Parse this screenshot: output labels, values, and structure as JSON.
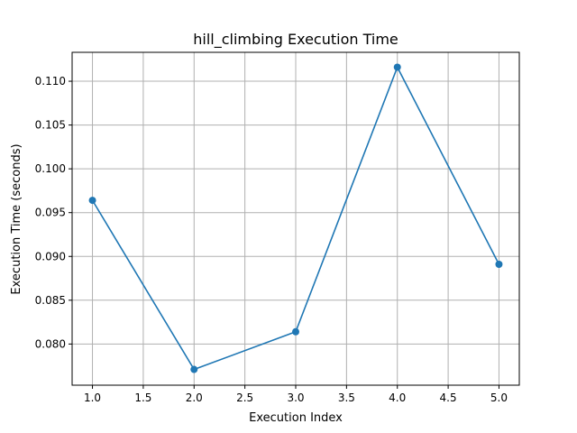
{
  "chart_data": {
    "type": "line",
    "title": "hill_climbing Execution Time",
    "xlabel": "Execution Index",
    "ylabel": "Execution Time (seconds)",
    "x": [
      1,
      2,
      3,
      4,
      5
    ],
    "series": [
      {
        "values": [
          0.0964,
          0.0771,
          0.0814,
          0.1116,
          0.0891
        ]
      }
    ],
    "xlim": [
      0.8,
      5.2
    ],
    "ylim": [
      0.0753,
      0.1133
    ],
    "xticks": [
      "1.0",
      "1.5",
      "2.0",
      "2.5",
      "3.0",
      "3.5",
      "4.0",
      "4.5",
      "5.0"
    ],
    "yticks": [
      "0.080",
      "0.085",
      "0.090",
      "0.095",
      "0.100",
      "0.105",
      "0.110"
    ],
    "grid": true,
    "marker": "circle",
    "colors": {
      "line": "#1f77b4"
    }
  }
}
